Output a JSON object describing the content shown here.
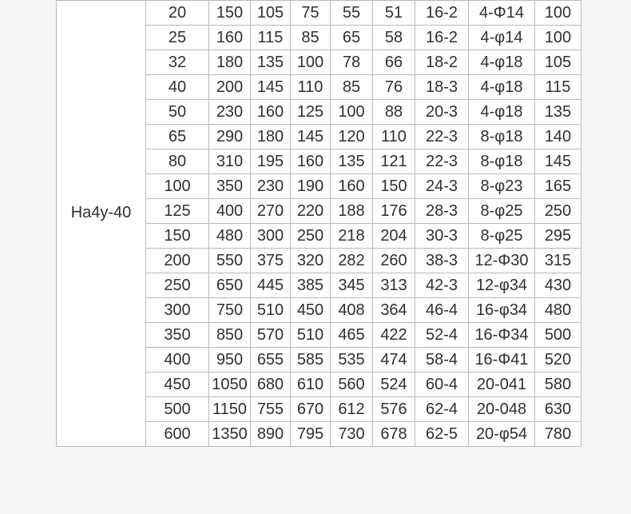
{
  "page": {
    "background_color": "#f5f5f6"
  },
  "table": {
    "model_label": "Ha4y-40",
    "border_color": "#b9b9b9",
    "cell_background": "#ffffff",
    "text_color": "#303030",
    "rows": [
      [
        "20",
        "150",
        "105",
        "75",
        "55",
        "51",
        "16-2",
        "4-Φ14",
        "100"
      ],
      [
        "25",
        "160",
        "115",
        "85",
        "65",
        "58",
        "16-2",
        "4-φ14",
        "100"
      ],
      [
        "32",
        "180",
        "135",
        "100",
        "78",
        "66",
        "18-2",
        "4-φ18",
        "105"
      ],
      [
        "40",
        "200",
        "145",
        "110",
        "85",
        "76",
        "18-3",
        "4-φ18",
        "115"
      ],
      [
        "50",
        "230",
        "160",
        "125",
        "100",
        "88",
        "20-3",
        "4-φ18",
        "135"
      ],
      [
        "65",
        "290",
        "180",
        "145",
        "120",
        "110",
        "22-3",
        "8-φ18",
        "140"
      ],
      [
        "80",
        "310",
        "195",
        "160",
        "135",
        "121",
        "22-3",
        "8-φ18",
        "145"
      ],
      [
        "100",
        "350",
        "230",
        "190",
        "160",
        "150",
        "24-3",
        "8-φ23",
        "165"
      ],
      [
        "125",
        "400",
        "270",
        "220",
        "188",
        "176",
        "28-3",
        "8-φ25",
        "250"
      ],
      [
        "150",
        "480",
        "300",
        "250",
        "218",
        "204",
        "30-3",
        "8-φ25",
        "295"
      ],
      [
        "200",
        "550",
        "375",
        "320",
        "282",
        "260",
        "38-3",
        "12-Φ30",
        "315"
      ],
      [
        "250",
        "650",
        "445",
        "385",
        "345",
        "313",
        "42-3",
        "12-φ34",
        "430"
      ],
      [
        "300",
        "750",
        "510",
        "450",
        "408",
        "364",
        "46-4",
        "16-φ34",
        "480"
      ],
      [
        "350",
        "850",
        "570",
        "510",
        "465",
        "422",
        "52-4",
        "16-Φ34",
        "500"
      ],
      [
        "400",
        "950",
        "655",
        "585",
        "535",
        "474",
        "58-4",
        "16-Φ41",
        "520"
      ],
      [
        "450",
        "1050",
        "680",
        "610",
        "560",
        "524",
        "60-4",
        "20-041",
        "580"
      ],
      [
        "500",
        "1150",
        "755",
        "670",
        "612",
        "576",
        "62-4",
        "20-048",
        "630"
      ],
      [
        "600",
        "1350",
        "890",
        "795",
        "730",
        "678",
        "62-5",
        "20-φ54",
        "780"
      ]
    ]
  }
}
